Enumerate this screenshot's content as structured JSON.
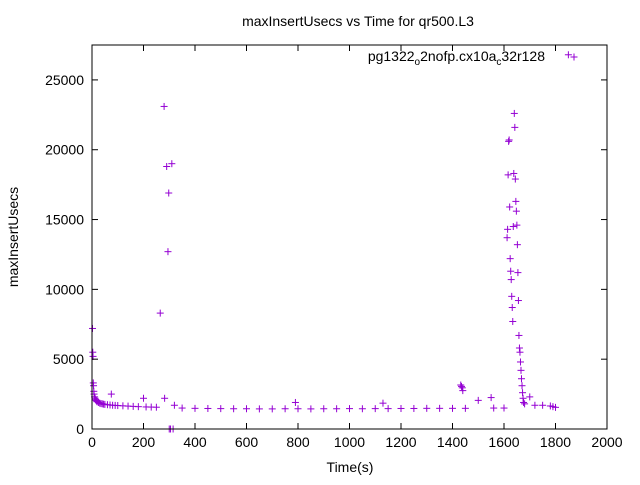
{
  "chart_data": {
    "type": "scatter",
    "title": "maxInsertUsecs vs Time for qr500.L3",
    "xlabel": "Time(s)",
    "ylabel": "maxInsertUsecs",
    "xlim": [
      0,
      2000
    ],
    "ylim": [
      0,
      27500
    ],
    "x_ticks": [
      "0",
      "200",
      "400",
      "600",
      "800",
      "1000",
      "1200",
      "1400",
      "1600",
      "1800",
      "2000"
    ],
    "y_ticks": [
      "0",
      "5000",
      "10000",
      "15000",
      "20000",
      "25000"
    ],
    "grid": false,
    "legend_position": "top-right",
    "marker": "plus",
    "color": "#9400d3",
    "series": [
      {
        "name_parts": [
          {
            "text": "pg1322",
            "sub": false
          },
          {
            "text": "o",
            "sub": true
          },
          {
            "text": "2nofp.cx10a",
            "sub": false
          },
          {
            "text": "c",
            "sub": true
          },
          {
            "text": "32r128",
            "sub": false
          }
        ],
        "points": [
          [
            2,
            7200
          ],
          [
            3,
            5500
          ],
          [
            4,
            5200
          ],
          [
            5,
            3300
          ],
          [
            6,
            3100
          ],
          [
            7,
            2700
          ],
          [
            8,
            2500
          ],
          [
            10,
            2300
          ],
          [
            12,
            2200
          ],
          [
            14,
            2100
          ],
          [
            16,
            2050
          ],
          [
            18,
            2000
          ],
          [
            20,
            1950
          ],
          [
            25,
            1900
          ],
          [
            30,
            1850
          ],
          [
            35,
            1820
          ],
          [
            40,
            1800
          ],
          [
            45,
            1780
          ],
          [
            50,
            1760
          ],
          [
            60,
            1740
          ],
          [
            70,
            1720
          ],
          [
            75,
            2500
          ],
          [
            80,
            1700
          ],
          [
            90,
            1690
          ],
          [
            100,
            1680
          ],
          [
            120,
            1660
          ],
          [
            140,
            1640
          ],
          [
            160,
            1620
          ],
          [
            180,
            1600
          ],
          [
            200,
            2200
          ],
          [
            210,
            1580
          ],
          [
            230,
            1570
          ],
          [
            250,
            1560
          ],
          [
            265,
            8300
          ],
          [
            280,
            23100
          ],
          [
            282,
            2200
          ],
          [
            290,
            18800
          ],
          [
            295,
            12700
          ],
          [
            298,
            16900
          ],
          [
            300,
            0
          ],
          [
            305,
            0
          ],
          [
            310,
            19000
          ],
          [
            315,
            0
          ],
          [
            320,
            1700
          ],
          [
            350,
            1500
          ],
          [
            400,
            1480
          ],
          [
            450,
            1470
          ],
          [
            500,
            1460
          ],
          [
            550,
            1450
          ],
          [
            600,
            1450
          ],
          [
            650,
            1440
          ],
          [
            700,
            1440
          ],
          [
            750,
            1450
          ],
          [
            790,
            1900
          ],
          [
            800,
            1450
          ],
          [
            850,
            1440
          ],
          [
            900,
            1450
          ],
          [
            950,
            1450
          ],
          [
            1000,
            1460
          ],
          [
            1050,
            1450
          ],
          [
            1100,
            1460
          ],
          [
            1130,
            1850
          ],
          [
            1150,
            1460
          ],
          [
            1200,
            1470
          ],
          [
            1250,
            1470
          ],
          [
            1300,
            1480
          ],
          [
            1350,
            1480
          ],
          [
            1400,
            1480
          ],
          [
            1432,
            3150
          ],
          [
            1435,
            3050
          ],
          [
            1438,
            2950
          ],
          [
            1440,
            2750
          ],
          [
            1450,
            1480
          ],
          [
            1500,
            2050
          ],
          [
            1550,
            2250
          ],
          [
            1560,
            1500
          ],
          [
            1600,
            1500
          ],
          [
            1612,
            13700
          ],
          [
            1614,
            14300
          ],
          [
            1616,
            18200
          ],
          [
            1618,
            20600
          ],
          [
            1620,
            20700
          ],
          [
            1622,
            15900
          ],
          [
            1624,
            12200
          ],
          [
            1626,
            11300
          ],
          [
            1628,
            10700
          ],
          [
            1630,
            9500
          ],
          [
            1632,
            8700
          ],
          [
            1634,
            7700
          ],
          [
            1636,
            14500
          ],
          [
            1638,
            18300
          ],
          [
            1640,
            22600
          ],
          [
            1642,
            21600
          ],
          [
            1644,
            17900
          ],
          [
            1646,
            16300
          ],
          [
            1648,
            15600
          ],
          [
            1650,
            14600
          ],
          [
            1652,
            13200
          ],
          [
            1654,
            11200
          ],
          [
            1656,
            9200
          ],
          [
            1658,
            6700
          ],
          [
            1660,
            5800
          ],
          [
            1662,
            5500
          ],
          [
            1664,
            4800
          ],
          [
            1666,
            4200
          ],
          [
            1668,
            3600
          ],
          [
            1670,
            3100
          ],
          [
            1672,
            2600
          ],
          [
            1674,
            2200
          ],
          [
            1676,
            1900
          ],
          [
            1680,
            1800
          ],
          [
            1700,
            2300
          ],
          [
            1720,
            1700
          ],
          [
            1750,
            1700
          ],
          [
            1780,
            1650
          ],
          [
            1790,
            1600
          ],
          [
            1800,
            1550
          ],
          [
            1850,
            26800
          ]
        ]
      }
    ]
  }
}
